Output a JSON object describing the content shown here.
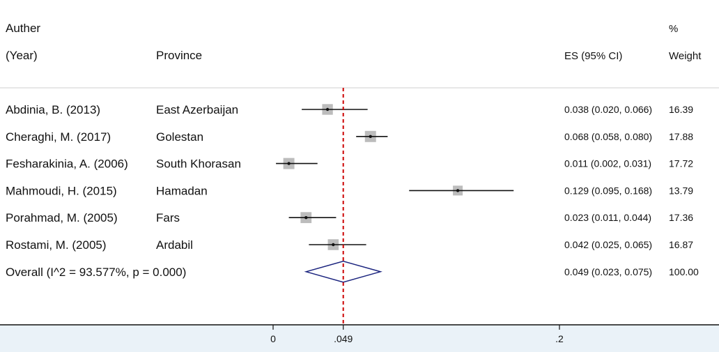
{
  "header": {
    "author_line1": "Auther",
    "author_line2": "(Year)",
    "province": "Province",
    "es": "ES (95% CI)",
    "weight_line1": "%",
    "weight_line2": "Weight"
  },
  "chart_data": {
    "type": "forest",
    "studies": [
      {
        "author": "Abdinia, B. (2013)",
        "province": "East Azerbaijan",
        "es": 0.038,
        "lo": 0.02,
        "hi": 0.066,
        "es_text": "0.038 (0.020, 0.066)",
        "weight": 16.39,
        "weight_text": "16.39"
      },
      {
        "author": "Cheraghi, M. (2017)",
        "province": "Golestan",
        "es": 0.068,
        "lo": 0.058,
        "hi": 0.08,
        "es_text": "0.068 (0.058, 0.080)",
        "weight": 17.88,
        "weight_text": "17.88"
      },
      {
        "author": "Fesharakinia, A. (2006)",
        "province": "South Khorasan",
        "es": 0.011,
        "lo": 0.002,
        "hi": 0.031,
        "es_text": "0.011 (0.002, 0.031)",
        "weight": 17.72,
        "weight_text": "17.72"
      },
      {
        "author": "Mahmoudi, H. (2015)",
        "province": "Hamadan",
        "es": 0.129,
        "lo": 0.095,
        "hi": 0.168,
        "es_text": "0.129 (0.095, 0.168)",
        "weight": 13.79,
        "weight_text": "13.79"
      },
      {
        "author": "Porahmad, M. (2005)",
        "province": "Fars",
        "es": 0.023,
        "lo": 0.011,
        "hi": 0.044,
        "es_text": "0.023 (0.011, 0.044)",
        "weight": 17.36,
        "weight_text": "17.36"
      },
      {
        "author": "Rostami, M. (2005)",
        "province": "Ardabil",
        "es": 0.042,
        "lo": 0.025,
        "hi": 0.065,
        "es_text": "0.042 (0.025, 0.065)",
        "weight": 16.87,
        "weight_text": "16.87"
      }
    ],
    "overall": {
      "label": "Overall  (I^2 = 93.577%, p = 0.000)",
      "es": 0.049,
      "lo": 0.023,
      "hi": 0.075,
      "es_text": "0.049 (0.023, 0.075)",
      "weight_text": "100.00"
    },
    "x_ticks": [
      {
        "value": 0,
        "label": "0"
      },
      {
        "value": 0.049,
        "label": ".049"
      },
      {
        "value": 0.2,
        "label": ".2"
      }
    ],
    "reference_line": 0.049,
    "colors": {
      "overall_diamond": "#1a237e",
      "reference_line": "#cc0000",
      "weight_box": "#bcbcbc",
      "axis_band": "#eaf2f8"
    }
  }
}
